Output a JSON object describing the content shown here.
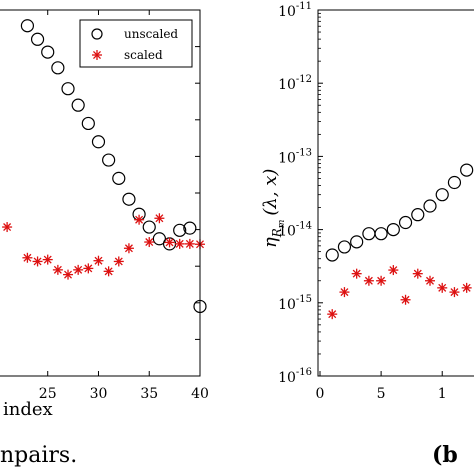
{
  "colors": {
    "unscaled": "#000000",
    "scaled": "#dd1111",
    "axis": "#000000"
  },
  "caption_text": "npairs.",
  "panel_b_label": "(b",
  "chart_data": [
    {
      "type": "scatter",
      "xlabel": "index",
      "ylabel": "",
      "xlim": [
        20.3,
        40
      ],
      "ylim": [
        0,
        1
      ],
      "xticks": [
        "25",
        "30",
        "35",
        "40"
      ],
      "legend": {
        "placement": "top-right",
        "entries": [
          {
            "label": "unscaled",
            "marker": "circle"
          },
          {
            "label": "scaled",
            "marker": "asterisk"
          }
        ]
      },
      "series": [
        {
          "name": "unscaled",
          "marker": "circle",
          "x": [
            23,
            24,
            25,
            26,
            27,
            28,
            29,
            30,
            31,
            32,
            33,
            34,
            35,
            36,
            37,
            38,
            39,
            40
          ],
          "y": [
            0.957,
            0.92,
            0.885,
            0.842,
            0.785,
            0.74,
            0.69,
            0.64,
            0.59,
            0.54,
            0.483,
            0.442,
            0.407,
            0.375,
            0.361,
            0.398,
            0.404,
            0.19
          ]
        },
        {
          "name": "scaled",
          "marker": "asterisk",
          "x": [
            21,
            23,
            24,
            25,
            26,
            27,
            28,
            29,
            30,
            31,
            32,
            33,
            34,
            35,
            36,
            37,
            38,
            39,
            40
          ],
          "y": [
            0.407,
            0.323,
            0.313,
            0.318,
            0.29,
            0.277,
            0.29,
            0.294,
            0.315,
            0.286,
            0.313,
            0.349,
            0.427,
            0.366,
            0.431,
            0.365,
            0.361,
            0.361,
            0.36
          ]
        }
      ]
    },
    {
      "type": "scatter",
      "ylabel_parts": [
        "η",
        "R",
        "m",
        "(λ, x)"
      ],
      "yscale": "log",
      "ylim": [
        1e-16,
        1e-11
      ],
      "xlim": [
        0,
        12.6
      ],
      "yticks": [
        {
          "base": "10",
          "exp": "-16"
        },
        {
          "base": "10",
          "exp": "-15"
        },
        {
          "base": "10",
          "exp": "-14"
        },
        {
          "base": "10",
          "exp": "-13"
        },
        {
          "base": "10",
          "exp": "-12"
        },
        {
          "base": "10",
          "exp": "-11"
        }
      ],
      "xticks": [
        "0",
        "5",
        "1"
      ],
      "series": [
        {
          "name": "unscaled",
          "marker": "circle",
          "x": [
            1,
            2,
            3,
            4,
            5,
            6,
            7,
            8,
            9,
            10,
            11,
            12
          ],
          "y": [
            4.5e-15,
            5.8e-15,
            6.8e-15,
            8.8e-15,
            8.8e-15,
            1e-14,
            1.25e-14,
            1.6e-14,
            2.1e-14,
            3e-14,
            4.4e-14,
            6.5e-14
          ]
        },
        {
          "name": "scaled",
          "marker": "asterisk",
          "x": [
            1,
            2,
            3,
            4,
            5,
            6,
            7,
            8,
            9,
            10,
            11,
            12
          ],
          "y": [
            7e-16,
            1.4e-15,
            2.5e-15,
            2e-15,
            2e-15,
            2.8e-15,
            1.1e-15,
            2.5e-15,
            2e-15,
            1.6e-15,
            1.4e-15,
            1.6e-15
          ]
        }
      ]
    }
  ]
}
